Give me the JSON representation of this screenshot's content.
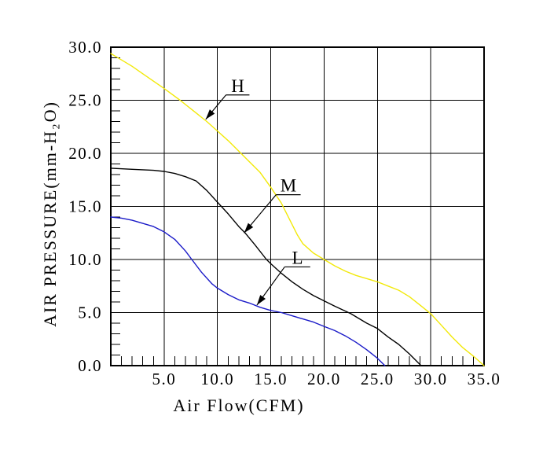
{
  "chart_data": {
    "type": "line",
    "title": "",
    "xlabel": "Air Flow(CFM)",
    "ylabel": "AIR PRESSURE(mm-H₂O)",
    "xlim": [
      0,
      35
    ],
    "ylim": [
      0,
      30
    ],
    "grid": "major-both",
    "legend_position": "inline-leader-labels",
    "minor_tick_step": 1,
    "x_tick_values": [
      5,
      10,
      15,
      20,
      25,
      30,
      35
    ],
    "x_tick_labels": [
      "5.0",
      "10.0",
      "15.0",
      "20.0",
      "25.0",
      "30.0",
      "35.0"
    ],
    "y_tick_values": [
      0,
      5,
      10,
      15,
      20,
      25,
      30
    ],
    "y_tick_labels": [
      "0.0",
      "5.0",
      "10.0",
      "15.0",
      "20.0",
      "25.0",
      "30.0"
    ],
    "background_color": "#ffffff",
    "axis_color": "#000000",
    "series": [
      {
        "name": "H",
        "color": "#f2e909",
        "points": [
          [
            0,
            29.4
          ],
          [
            1,
            28.8
          ],
          [
            2,
            28.2
          ],
          [
            3,
            27.5
          ],
          [
            4,
            26.8
          ],
          [
            5,
            26.1
          ],
          [
            6.5,
            25.0
          ],
          [
            8,
            23.8
          ],
          [
            9,
            23.0
          ],
          [
            10,
            22.1
          ],
          [
            11,
            21.2
          ],
          [
            12,
            20.2
          ],
          [
            13,
            19.2
          ],
          [
            14,
            18.2
          ],
          [
            15,
            16.8
          ],
          [
            16,
            15.3
          ],
          [
            17,
            13.3
          ],
          [
            17.5,
            12.3
          ],
          [
            18,
            11.5
          ],
          [
            19,
            10.6
          ],
          [
            20,
            10.0
          ],
          [
            21,
            9.4
          ],
          [
            22,
            8.9
          ],
          [
            23,
            8.5
          ],
          [
            24,
            8.2
          ],
          [
            25,
            7.9
          ],
          [
            26,
            7.5
          ],
          [
            27,
            7.1
          ],
          [
            28,
            6.5
          ],
          [
            29,
            5.7
          ],
          [
            30,
            4.9
          ],
          [
            31,
            3.8
          ],
          [
            32,
            2.7
          ],
          [
            33,
            1.7
          ],
          [
            34,
            0.9
          ],
          [
            35,
            0
          ]
        ]
      },
      {
        "name": "M",
        "color": "#000000",
        "points": [
          [
            0,
            18.6
          ],
          [
            2,
            18.5
          ],
          [
            4,
            18.4
          ],
          [
            5,
            18.3
          ],
          [
            6,
            18.1
          ],
          [
            7,
            17.8
          ],
          [
            8,
            17.4
          ],
          [
            9,
            16.5
          ],
          [
            10,
            15.4
          ],
          [
            11,
            14.3
          ],
          [
            12,
            13.1
          ],
          [
            12.6,
            12.5
          ],
          [
            13.5,
            11.4
          ],
          [
            14.6,
            10.0
          ],
          [
            15,
            9.6
          ],
          [
            16,
            8.7
          ],
          [
            17,
            7.9
          ],
          [
            18,
            7.2
          ],
          [
            19,
            6.6
          ],
          [
            20,
            6.1
          ],
          [
            21,
            5.6
          ],
          [
            22.5,
            4.9
          ],
          [
            24,
            4.0
          ],
          [
            25,
            3.5
          ],
          [
            26,
            2.7
          ],
          [
            27,
            2.0
          ],
          [
            28,
            1.1
          ],
          [
            29.1,
            0
          ]
        ]
      },
      {
        "name": "L",
        "color": "#1a1ac8",
        "points": [
          [
            0,
            14.0
          ],
          [
            1,
            13.9
          ],
          [
            2,
            13.7
          ],
          [
            3,
            13.4
          ],
          [
            4,
            13.1
          ],
          [
            5,
            12.6
          ],
          [
            6,
            11.9
          ],
          [
            7,
            10.8
          ],
          [
            7.6,
            10.0
          ],
          [
            8.5,
            8.8
          ],
          [
            9.5,
            7.7
          ],
          [
            10,
            7.3
          ],
          [
            11,
            6.7
          ],
          [
            12,
            6.2
          ],
          [
            13,
            5.9
          ],
          [
            14,
            5.5
          ],
          [
            15,
            5.2
          ],
          [
            16,
            5.0
          ],
          [
            17,
            4.7
          ],
          [
            18,
            4.4
          ],
          [
            19,
            4.1
          ],
          [
            20,
            3.7
          ],
          [
            21,
            3.3
          ],
          [
            22,
            2.8
          ],
          [
            23,
            2.2
          ],
          [
            24,
            1.5
          ],
          [
            25,
            0.7
          ],
          [
            25.7,
            0
          ]
        ]
      }
    ],
    "annotations": [
      {
        "text": "H",
        "tip": [
          8.9,
          23.2
        ],
        "corner": [
          10.8,
          25.5
        ],
        "underline_end": [
          13.0,
          25.5
        ]
      },
      {
        "text": "M",
        "tip": [
          12.5,
          12.5
        ],
        "corner": [
          15.5,
          16.1
        ],
        "underline_end": [
          17.8,
          16.1
        ]
      },
      {
        "text": "L",
        "tip": [
          13.7,
          5.7
        ],
        "corner": [
          16.3,
          9.3
        ],
        "underline_end": [
          18.7,
          9.3
        ]
      }
    ]
  }
}
